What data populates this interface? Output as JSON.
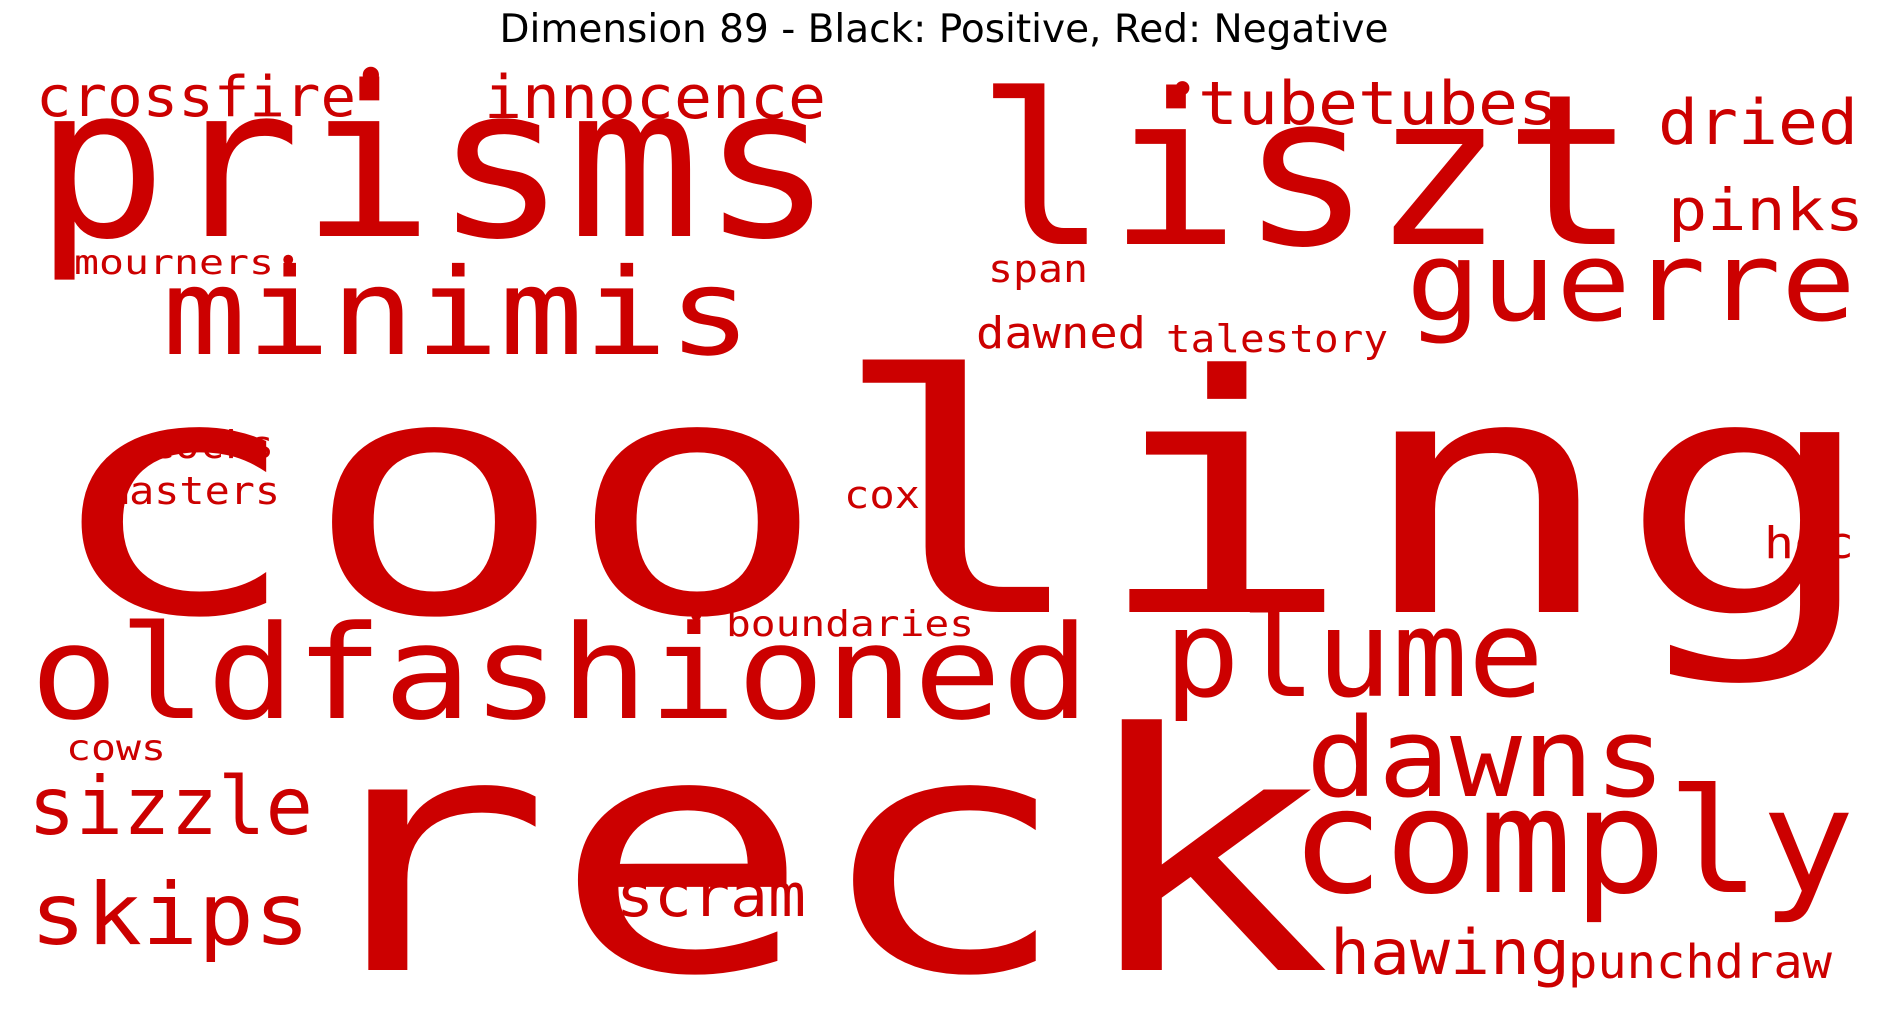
{
  "title": "Dimension 89 - Black: Positive, Red: Negative",
  "colors": {
    "positive": "#000000",
    "negative": "#cc0000"
  },
  "words": [
    {
      "text": "cooling",
      "polarity": "negative"
    },
    {
      "text": "reck",
      "polarity": "negative"
    },
    {
      "text": "prisms",
      "polarity": "negative"
    },
    {
      "text": "liszt",
      "polarity": "negative"
    },
    {
      "text": "oldfashioned",
      "polarity": "negative"
    },
    {
      "text": "minimis",
      "polarity": "negative"
    },
    {
      "text": "comply",
      "polarity": "negative"
    },
    {
      "text": "plume",
      "polarity": "negative"
    },
    {
      "text": "dawns",
      "polarity": "negative"
    },
    {
      "text": "guerre",
      "polarity": "negative"
    },
    {
      "text": "sizzle",
      "polarity": "negative"
    },
    {
      "text": "skips",
      "polarity": "negative"
    },
    {
      "text": "innocence",
      "polarity": "negative"
    },
    {
      "text": "crossfire",
      "polarity": "negative"
    },
    {
      "text": "tubetubes",
      "polarity": "negative"
    },
    {
      "text": "dried",
      "polarity": "negative"
    },
    {
      "text": "pinks",
      "polarity": "negative"
    },
    {
      "text": "hawing",
      "polarity": "negative"
    },
    {
      "text": "scram",
      "polarity": "negative"
    },
    {
      "text": "punchdraw",
      "polarity": "negative"
    },
    {
      "text": "dawned",
      "polarity": "negative"
    },
    {
      "text": "talestory",
      "polarity": "negative"
    },
    {
      "text": "boundaries",
      "polarity": "negative"
    },
    {
      "text": "mourners",
      "polarity": "negative"
    },
    {
      "text": "span",
      "polarity": "negative"
    },
    {
      "text": "cocks",
      "polarity": "negative"
    },
    {
      "text": "masters",
      "polarity": "negative"
    },
    {
      "text": "cox",
      "polarity": "negative"
    },
    {
      "text": "hoc",
      "polarity": "negative"
    },
    {
      "text": "cows",
      "polarity": "negative"
    },
    {
      "text": "•",
      "polarity": "negative"
    },
    {
      "text": "•",
      "polarity": "negative"
    },
    {
      "text": "•",
      "polarity": "negative"
    },
    {
      "text": "•",
      "polarity": "negative"
    }
  ]
}
